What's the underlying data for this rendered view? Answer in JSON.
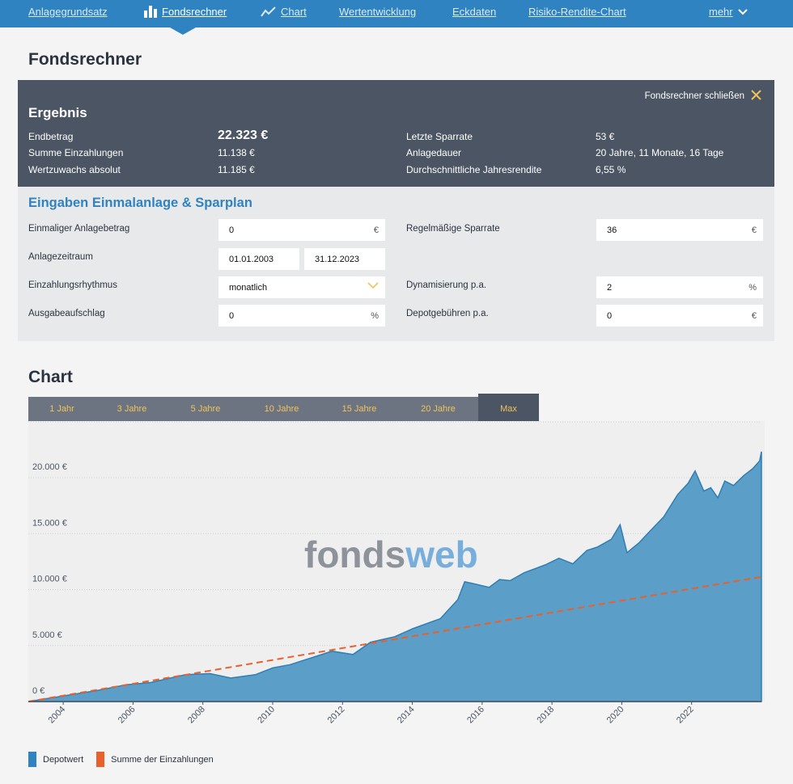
{
  "nav": {
    "items": [
      {
        "label": "Anlagegrundsatz"
      },
      {
        "label": "Fondsrechner"
      },
      {
        "label": "Chart"
      },
      {
        "label": "Wertentwicklung"
      },
      {
        "label": "Eckdaten"
      },
      {
        "label": "Risiko-Rendite-Chart"
      },
      {
        "label": "mehr"
      }
    ]
  },
  "page_title": "Fondsrechner",
  "result": {
    "heading": "Ergebnis",
    "close_label": "Fondsrechner schließen",
    "rows_left": [
      {
        "label": "Endbetrag",
        "value": "22.323 €"
      },
      {
        "label": "Summe Einzahlungen",
        "value": "11.138 €"
      },
      {
        "label": "Wertzuwachs absolut",
        "value": "11.185 €"
      }
    ],
    "rows_right": [
      {
        "label": "Letzte Sparrate",
        "value": "53 €"
      },
      {
        "label": "Anlagedauer",
        "value": "20 Jahre, 11 Monate, 16 Tage"
      },
      {
        "label": "Durchschnittliche Jahresrendite",
        "value": "6,55 %"
      }
    ]
  },
  "inputs": {
    "heading": "Eingaben Einmalanlage & Sparplan",
    "einmalig": {
      "label": "Einmaliger Anlagebetrag",
      "value": "0",
      "unit": "€"
    },
    "zeitraum": {
      "label": "Anlagezeitraum",
      "from": "01.01.2003",
      "to": "31.12.2023"
    },
    "rhythmus": {
      "label": "Einzahlungsrhythmus",
      "value": "monatlich"
    },
    "aufschlag": {
      "label": "Ausgabeaufschlag",
      "value": "0",
      "unit": "%"
    },
    "sparrate": {
      "label": "Regelmäßige Sparrate",
      "value": "36",
      "unit": "€"
    },
    "dynamik": {
      "label": "Dynamisierung p.a.",
      "value": "2",
      "unit": "%"
    },
    "depot": {
      "label": "Depotgebühren p.a.",
      "value": "0",
      "unit": "€"
    }
  },
  "chart_title": "Chart",
  "tabs": [
    "1 Jahr",
    "3 Jahre",
    "5 Jahre",
    "10 Jahre",
    "15 Jahre",
    "20 Jahre",
    "Max"
  ],
  "active_tab": "Max",
  "watermark": {
    "part1": "fonds",
    "part2": "web"
  },
  "colors": {
    "nav": "#2f83c0",
    "area": "#5b9ec7",
    "deposits": "#e8602c",
    "panel": "#4b5563",
    "accent": "#f2c25a"
  },
  "chart_data": {
    "type": "area",
    "title": "",
    "xlabel": "",
    "ylabel": "",
    "xlim": [
      2003.0,
      2024.0
    ],
    "ylim": [
      0,
      25000
    ],
    "y_ticks": [
      0,
      5000,
      10000,
      15000,
      20000
    ],
    "y_tick_labels": [
      "0 €",
      "5.000 €",
      "10.000 €",
      "15.000 €",
      "20.000 €"
    ],
    "x_ticks": [
      2004,
      2006,
      2008,
      2010,
      2012,
      2014,
      2016,
      2018,
      2020,
      2022
    ],
    "x_tick_labels": [
      "2004",
      "2006",
      "2008",
      "2010",
      "2012",
      "2014",
      "2016",
      "2018",
      "2020",
      "2022"
    ],
    "legend": "bottom-left",
    "series": [
      {
        "name": "Depotwert",
        "kind": "area",
        "points": [
          [
            2003.0,
            0
          ],
          [
            2004.0,
            500
          ],
          [
            2005.0,
            1000
          ],
          [
            2005.8,
            1500
          ],
          [
            2006.5,
            1700
          ],
          [
            2007.5,
            2400
          ],
          [
            2008.2,
            2500
          ],
          [
            2008.8,
            2100
          ],
          [
            2009.5,
            2400
          ],
          [
            2010.0,
            3000
          ],
          [
            2010.5,
            3300
          ],
          [
            2011.2,
            4000
          ],
          [
            2011.7,
            4500
          ],
          [
            2012.3,
            4200
          ],
          [
            2012.8,
            5300
          ],
          [
            2013.5,
            5800
          ],
          [
            2014.0,
            6500
          ],
          [
            2014.8,
            7400
          ],
          [
            2015.3,
            9100
          ],
          [
            2015.5,
            10700
          ],
          [
            2015.8,
            10500
          ],
          [
            2016.2,
            10200
          ],
          [
            2016.5,
            10900
          ],
          [
            2016.8,
            10800
          ],
          [
            2017.2,
            11500
          ],
          [
            2017.8,
            12200
          ],
          [
            2018.2,
            12800
          ],
          [
            2018.6,
            12300
          ],
          [
            2019.0,
            13500
          ],
          [
            2019.3,
            13800
          ],
          [
            2019.7,
            14500
          ],
          [
            2019.95,
            15800
          ],
          [
            2020.15,
            13300
          ],
          [
            2020.5,
            14200
          ],
          [
            2020.8,
            15200
          ],
          [
            2021.2,
            16500
          ],
          [
            2021.6,
            18500
          ],
          [
            2021.9,
            19500
          ],
          [
            2022.1,
            20600
          ],
          [
            2022.35,
            18800
          ],
          [
            2022.55,
            19100
          ],
          [
            2022.75,
            18200
          ],
          [
            2022.95,
            19700
          ],
          [
            2023.2,
            19300
          ],
          [
            2023.5,
            20200
          ],
          [
            2023.75,
            20800
          ],
          [
            2023.95,
            21500
          ],
          [
            2024.0,
            22323
          ]
        ]
      },
      {
        "name": "Summe der Einzahlungen",
        "kind": "dashed-line",
        "points": [
          [
            2003.0,
            0
          ],
          [
            2024.0,
            11138
          ]
        ]
      }
    ]
  },
  "legend_items": [
    {
      "label": "Depotwert",
      "color": "#2f83c0"
    },
    {
      "label": "Summe der Einzahlungen",
      "color": "#e8602c"
    }
  ]
}
